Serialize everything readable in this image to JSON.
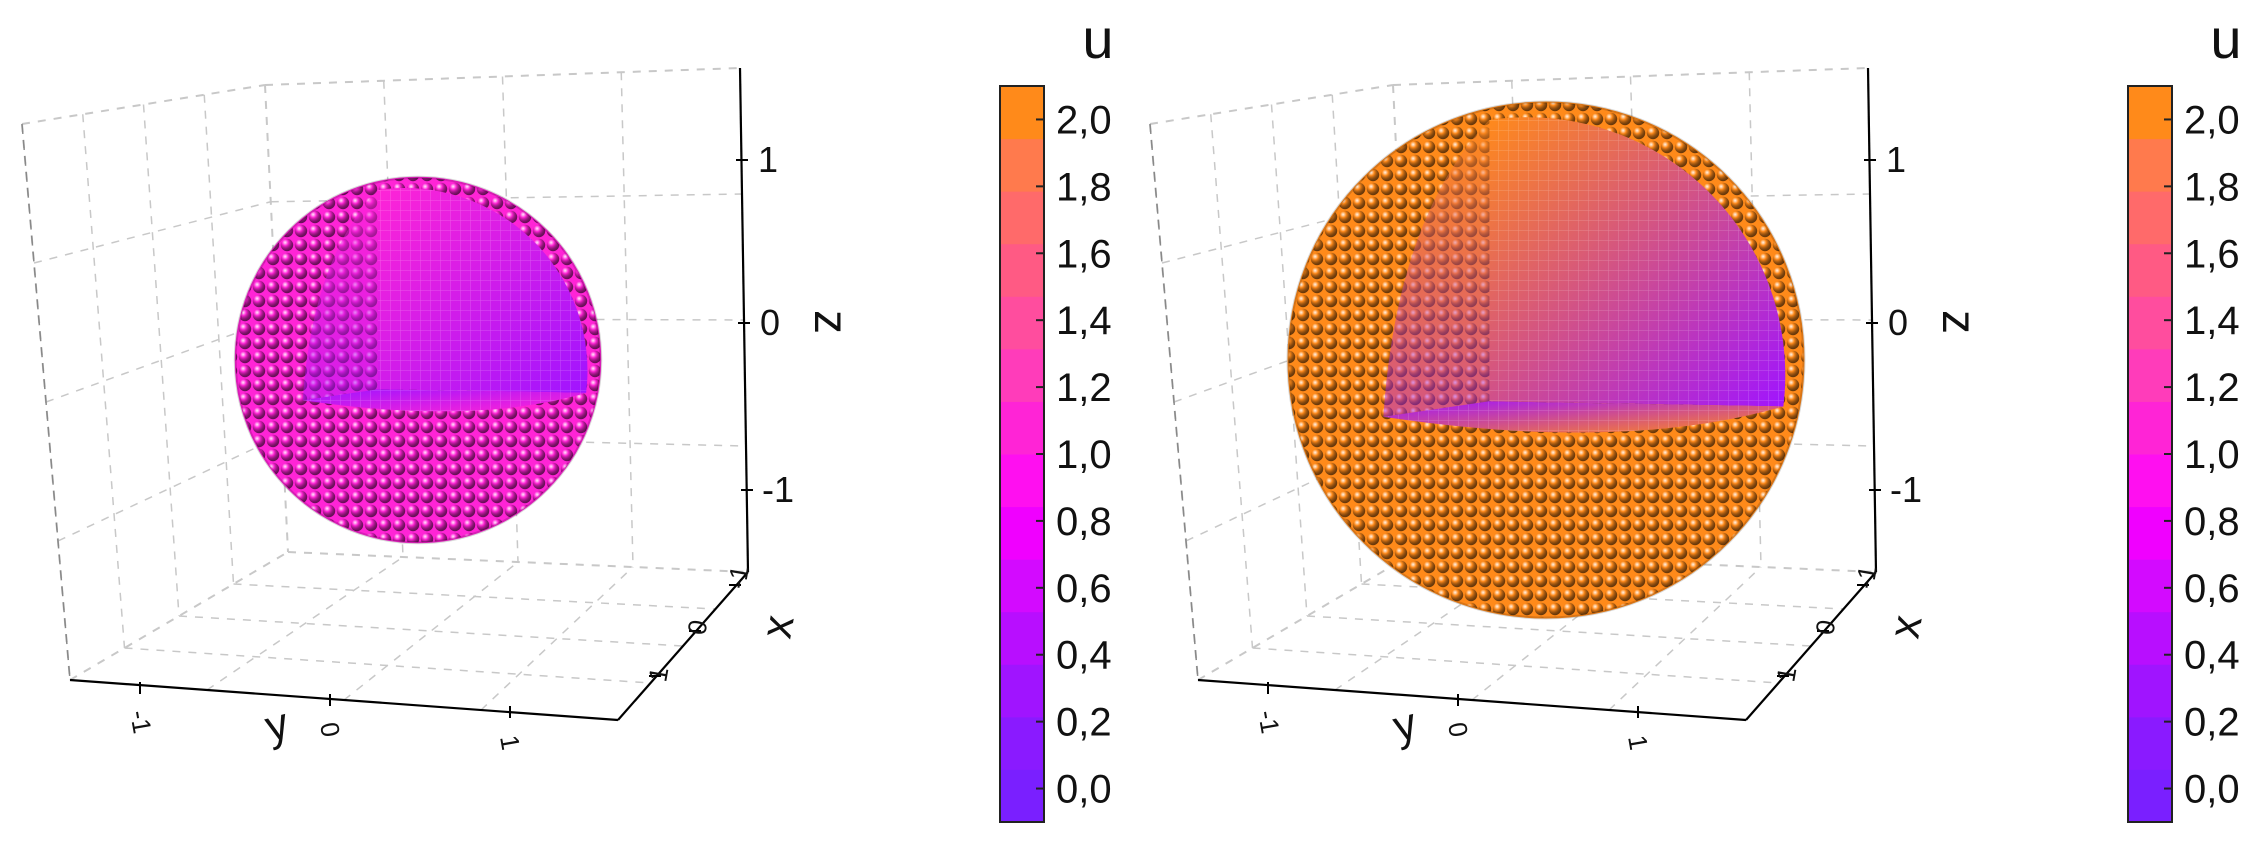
{
  "chart_data": [
    {
      "type": "scatter",
      "subtype": "3d-voxel-sphere-cutaway",
      "axes": {
        "x": {
          "label": "x",
          "ticks": [
            "-1",
            "0",
            "1"
          ],
          "range": [
            -1.3,
            1.3
          ]
        },
        "y": {
          "label": "y",
          "ticks": [
            "-1",
            "0",
            "1"
          ],
          "range": [
            -1.3,
            1.3
          ]
        },
        "z": {
          "label": "z",
          "ticks": [
            "1",
            "0",
            "-1"
          ],
          "range": [
            -1.3,
            1.3
          ]
        }
      },
      "object": {
        "shape": "sphere",
        "radius": 0.85,
        "octant_removed": true,
        "shell_value": 1.15,
        "core_value": 0.3
      },
      "grid": true,
      "colorbar": {
        "title": "u",
        "ticks": [
          "2,0",
          "1,8",
          "1,6",
          "1,4",
          "1,2",
          "1,0",
          "0,8",
          "0,6",
          "0,4",
          "0,2",
          "0,0"
        ],
        "range": [
          -0.1,
          2.1
        ],
        "colors": [
          "#7a1fff",
          "#8a1aff",
          "#a014ff",
          "#b80eff",
          "#d30aff",
          "#f000ff",
          "#ff0ff0",
          "#ff24d6",
          "#ff3cba",
          "#ff4d9e",
          "#ff5a84",
          "#ff6a6a",
          "#ff7a4d",
          "#ff8a1a"
        ]
      }
    },
    {
      "type": "scatter",
      "subtype": "3d-voxel-sphere-cutaway",
      "axes": {
        "x": {
          "label": "x",
          "ticks": [
            "-1",
            "0",
            "1"
          ],
          "range": [
            -1.3,
            1.3
          ]
        },
        "y": {
          "label": "y",
          "ticks": [
            "-1",
            "0",
            "1"
          ],
          "range": [
            -1.3,
            1.3
          ]
        },
        "z": {
          "label": "z",
          "ticks": [
            "1",
            "0",
            "-1"
          ],
          "range": [
            -1.3,
            1.3
          ]
        }
      },
      "object": {
        "shape": "sphere",
        "radius": 1.2,
        "octant_removed": true,
        "shell_value": 2.05,
        "core_value": 0.3
      },
      "grid": true,
      "colorbar": {
        "title": "u",
        "ticks": [
          "2,0",
          "1,8",
          "1,6",
          "1,4",
          "1,2",
          "1,0",
          "0,8",
          "0,6",
          "0,4",
          "0,2",
          "0,0"
        ],
        "range": [
          -0.1,
          2.1
        ],
        "colors": [
          "#7a1fff",
          "#8a1aff",
          "#a014ff",
          "#b80eff",
          "#d30aff",
          "#f000ff",
          "#ff0ff0",
          "#ff24d6",
          "#ff3cba",
          "#ff4d9e",
          "#ff5a84",
          "#ff6a6a",
          "#ff7a4d",
          "#ff8a1a"
        ]
      }
    }
  ]
}
